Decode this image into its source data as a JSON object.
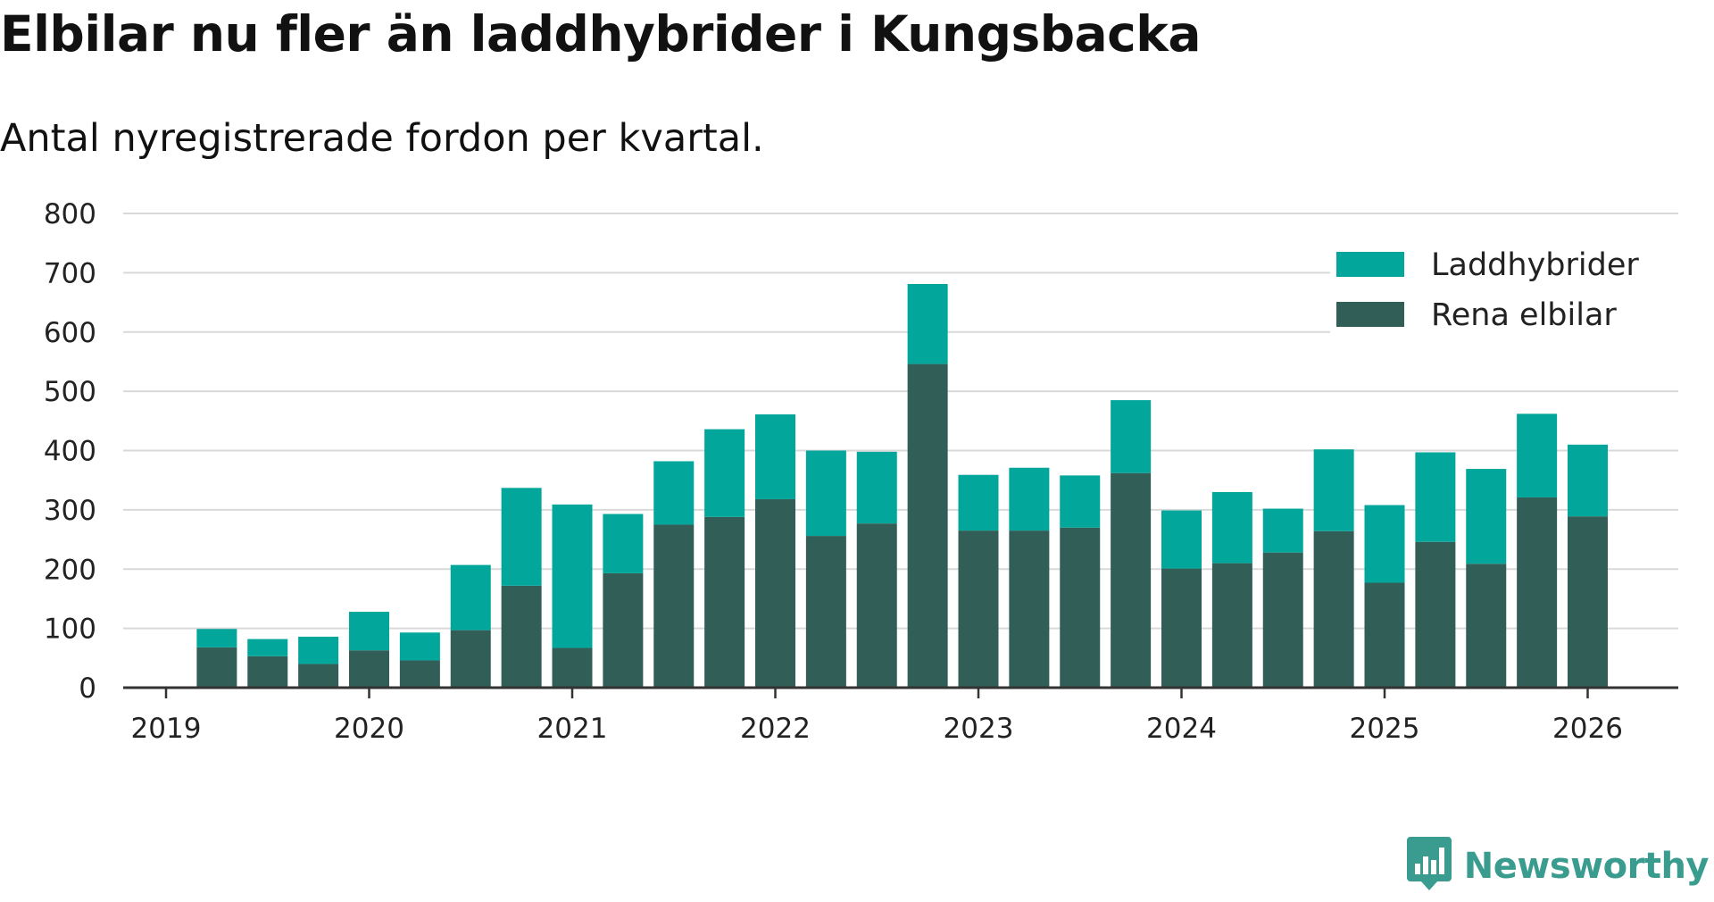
{
  "header": {
    "title": "Elbilar nu fler än laddhybrider i Kungsbacka",
    "subtitle": "Antal nyregistrerade fordon per kvartal."
  },
  "brand": {
    "name": "Newsworthy",
    "icon": "newsworthy-logo-icon"
  },
  "colors": {
    "laddhybrider": "#02a69a",
    "rena_elbilar": "#325e58",
    "gridline": "#d9d9d9",
    "axis": "#333333",
    "brand": "#3a9c8f"
  },
  "chart_data": {
    "type": "bar",
    "stacked": true,
    "title": "Elbilar nu fler än laddhybrider i Kungsbacka",
    "subtitle": "Antal nyregistrerade fordon per kvartal.",
    "xlabel": "",
    "ylabel": "",
    "ylim": [
      0,
      800
    ],
    "yticks": [
      0,
      100,
      200,
      300,
      400,
      500,
      600,
      700,
      800
    ],
    "grid": true,
    "legend_position": "top-right",
    "x_tick_labels": [
      "2019",
      "2020",
      "2021",
      "2022",
      "2023",
      "2024",
      "2025",
      "2026"
    ],
    "categories": [
      "2019 Q2",
      "2019 Q3",
      "2019 Q4",
      "2020 Q1",
      "2020 Q2",
      "2020 Q3",
      "2020 Q4",
      "2021 Q1",
      "2021 Q2",
      "2021 Q3",
      "2021 Q4",
      "2022 Q1",
      "2022 Q2",
      "2022 Q3",
      "2022 Q4",
      "2023 Q1",
      "2023 Q2",
      "2023 Q3",
      "2023 Q4",
      "2024 Q1",
      "2024 Q2",
      "2024 Q3",
      "2024 Q4",
      "2025 Q1",
      "2025 Q2",
      "2025 Q3",
      "2025 Q4",
      "2026 Q1"
    ],
    "series": [
      {
        "name": "Rena elbilar",
        "color": "#325e58",
        "values": [
          68,
          53,
          40,
          63,
          46,
          97,
          172,
          67,
          193,
          275,
          288,
          318,
          256,
          277,
          546,
          265,
          265,
          270,
          362,
          201,
          210,
          228,
          264,
          177,
          246,
          209,
          321,
          289
        ]
      },
      {
        "name": "Laddhybrider",
        "color": "#02a69a",
        "values": [
          31,
          29,
          46,
          65,
          47,
          110,
          165,
          242,
          100,
          107,
          148,
          143,
          144,
          121,
          135,
          94,
          106,
          88,
          123,
          98,
          120,
          74,
          138,
          131,
          151,
          160,
          141,
          121
        ]
      }
    ],
    "legend": [
      "Laddhybrider",
      "Rena elbilar"
    ]
  }
}
